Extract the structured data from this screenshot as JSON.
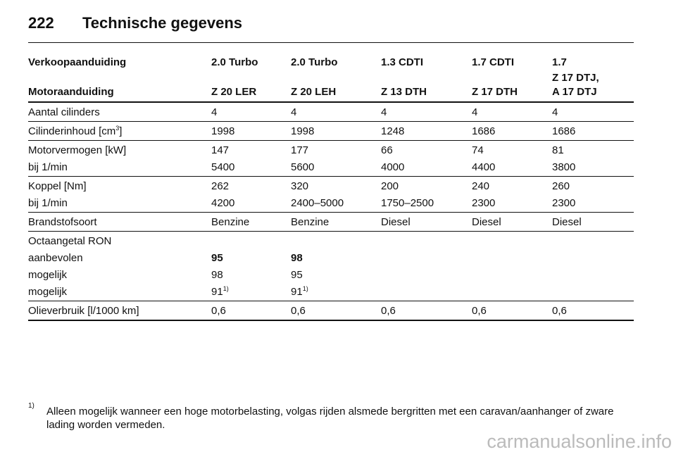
{
  "header": {
    "page": "222",
    "title": "Technische gegevens"
  },
  "table": {
    "header": {
      "row1": [
        "Verkoopaanduiding",
        "2.0 Turbo",
        "2.0 Turbo",
        "1.3 CDTI",
        "1.7 CDTI",
        "1.7"
      ],
      "row2": [
        "Motoraanduiding",
        "Z 20 LER",
        "Z 20 LEH",
        "Z 13 DTH",
        "Z 17 DTH",
        [
          "Z 17 DTJ,",
          "A 17 DTJ"
        ]
      ]
    },
    "groups": [
      [
        [
          "Aantal cilinders",
          "4",
          "4",
          "4",
          "4",
          "4"
        ]
      ],
      [
        [
          {
            "text": "Cilinderinhoud [cm",
            "sup": "3",
            "after": "]"
          },
          "1998",
          "1998",
          "1248",
          "1686",
          "1686"
        ]
      ],
      [
        [
          "Motorvermogen [kW]",
          "147",
          "177",
          "66",
          "74",
          "81"
        ],
        [
          "bij 1/min",
          "5400",
          "5600",
          "4000",
          "4400",
          "3800"
        ]
      ],
      [
        [
          "Koppel [Nm]",
          "262",
          "320",
          "200",
          "240",
          "260"
        ],
        [
          "bij 1/min",
          "4200",
          "2400–5000",
          "1750–2500",
          "2300",
          "2300"
        ]
      ],
      [
        [
          "Brandstofsoort",
          "Benzine",
          "Benzine",
          "Diesel",
          "Diesel",
          "Diesel"
        ]
      ],
      [
        [
          "Octaangetal RON"
        ],
        [
          "aanbevolen",
          "95",
          "98"
        ],
        [
          "mogelijk",
          "98",
          "95"
        ],
        [
          "mogelijk",
          {
            "text": "91",
            "sup": "1)"
          },
          {
            "text": "91",
            "sup": "1)"
          }
        ]
      ],
      [
        [
          "Olieverbruik [l/1000 km]",
          "0,6",
          "0,6",
          "0,6",
          "0,6",
          "0,6"
        ]
      ]
    ]
  },
  "footnote": {
    "mark": "1)",
    "text": "Alleen mogelijk wanneer een hoge motorbelasting, volgas rijden alsmede bergritten met een caravan/aanhanger of zware lading worden vermeden."
  },
  "watermark": "carmanualsonline.info"
}
